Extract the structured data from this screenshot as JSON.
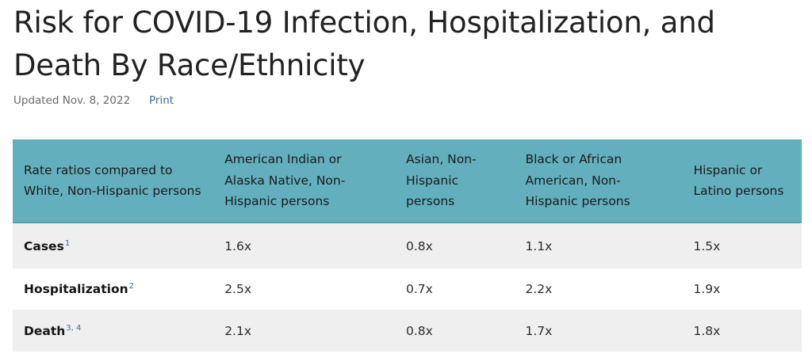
{
  "page": {
    "title": "Risk for COVID-19 Infection, Hospitalization, and Death By Race/Ethnicity",
    "updated": "Updated Nov. 8, 2022",
    "print_label": "Print"
  },
  "table": {
    "headers": [
      "Rate ratios compared to White, Non-Hispanic persons",
      "American Indian or Alaska Native, Non-Hispanic persons",
      "Asian, Non-Hispanic persons",
      "Black or African American, Non-Hispanic persons",
      "Hispanic or Latino persons"
    ],
    "rows": [
      {
        "label": "Cases",
        "footnote": "1",
        "values": [
          "1.6x",
          "0.8x",
          "1.1x",
          "1.5x"
        ]
      },
      {
        "label": "Hospitalization",
        "footnote": "2",
        "values": [
          "2.5x",
          "0.7x",
          "2.2x",
          "1.9x"
        ]
      },
      {
        "label": "Death",
        "footnote": "3, 4",
        "values": [
          "2.1x",
          "0.8x",
          "1.7x",
          "1.8x"
        ]
      }
    ]
  },
  "colors": {
    "header_bg": "#63afbd",
    "stripe_bg": "#efefef",
    "link": "#3b6f9e"
  }
}
